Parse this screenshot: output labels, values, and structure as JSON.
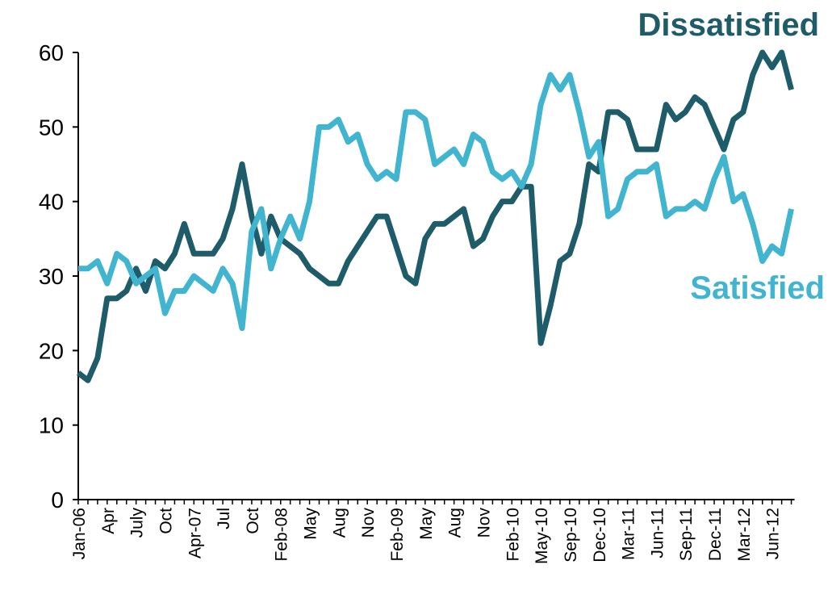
{
  "chart_data": {
    "type": "line",
    "categories": [
      "Jan-06",
      null,
      null,
      "Apr",
      null,
      null,
      "July",
      null,
      null,
      "Oct",
      null,
      null,
      "Apr-07",
      null,
      null,
      "Jul",
      null,
      null,
      "Oct",
      null,
      null,
      "Feb-08",
      null,
      null,
      "May",
      null,
      null,
      "Aug",
      null,
      null,
      "Nov",
      null,
      null,
      "Feb-09",
      null,
      null,
      "May",
      null,
      null,
      "Aug",
      null,
      null,
      "Nov",
      null,
      null,
      "Feb-10",
      null,
      null,
      "May-10",
      null,
      null,
      "Sep-10",
      null,
      null,
      "Dec-10",
      null,
      null,
      "Mar-11",
      null,
      null,
      "Jun-11",
      null,
      null,
      "Sep-11",
      null,
      null,
      "Dec-11",
      null,
      null,
      "Mar-12",
      null,
      null,
      "Jun-12",
      null,
      null
    ],
    "series": [
      {
        "name": "Dissatisfied",
        "color": "#1e5c69",
        "values": [
          17,
          16,
          19,
          27,
          27,
          28,
          31,
          28,
          32,
          31,
          33,
          37,
          33,
          33,
          33,
          35,
          39,
          45,
          38,
          33,
          38,
          35,
          34,
          33,
          31,
          30,
          29,
          29,
          32,
          34,
          36,
          38,
          38,
          34,
          30,
          29,
          35,
          37,
          37,
          38,
          39,
          34,
          35,
          38,
          40,
          40,
          42,
          42,
          21,
          26,
          32,
          33,
          37,
          45,
          44,
          52,
          52,
          51,
          47,
          47,
          47,
          53,
          51,
          52,
          54,
          53,
          50,
          47,
          51,
          52,
          57,
          60,
          58,
          60,
          55
        ]
      },
      {
        "name": "Satisfied",
        "color": "#41b5cf",
        "values": [
          31,
          31,
          32,
          29,
          33,
          32,
          29,
          30,
          31,
          25,
          28,
          28,
          30,
          29,
          28,
          31,
          29,
          23,
          36,
          39,
          31,
          35,
          38,
          35,
          40,
          50,
          50,
          51,
          48,
          49,
          45,
          43,
          44,
          43,
          52,
          52,
          51,
          45,
          46,
          47,
          45,
          49,
          48,
          44,
          43,
          44,
          42,
          45,
          53,
          57,
          55,
          57,
          52,
          46,
          48,
          38,
          39,
          43,
          44,
          44,
          45,
          38,
          39,
          39,
          40,
          39,
          43,
          46,
          40,
          41,
          37,
          32,
          34,
          33,
          39
        ]
      }
    ],
    "ylim": [
      0,
      60
    ],
    "yticks": [
      0,
      10,
      20,
      30,
      40,
      50,
      60
    ]
  }
}
